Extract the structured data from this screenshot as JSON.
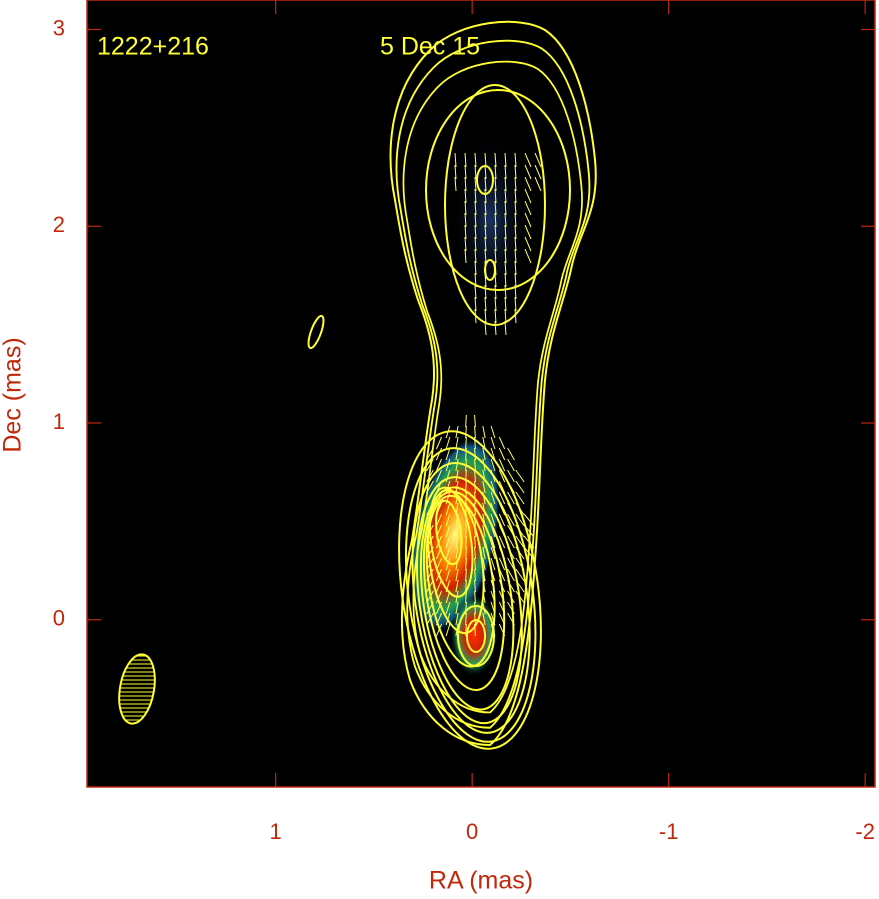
{
  "chart_data": {
    "type": "image",
    "source": "1222+216",
    "epoch": "5 Dec 15",
    "xlabel": "RA (mas)",
    "ylabel": "Dec (mas)",
    "xlim": [
      1.96,
      -2.05
    ],
    "xticks": [
      1,
      0,
      -1,
      -2
    ],
    "ylim": [
      -0.85,
      3.15
    ],
    "yticks": [
      0,
      1,
      2,
      3
    ]
  }
}
